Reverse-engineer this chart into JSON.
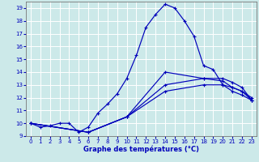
{
  "xlabel": "Graphe des températures (°C)",
  "bg_color": "#cce9e9",
  "grid_color": "#ffffff",
  "line_color": "#0000bb",
  "xlim": [
    -0.5,
    23.5
  ],
  "ylim": [
    9,
    19.5
  ],
  "xticks": [
    0,
    1,
    2,
    3,
    4,
    5,
    6,
    7,
    8,
    9,
    10,
    11,
    12,
    13,
    14,
    15,
    16,
    17,
    18,
    19,
    20,
    21,
    22,
    23
  ],
  "yticks": [
    9,
    10,
    11,
    12,
    13,
    14,
    15,
    16,
    17,
    18,
    19
  ],
  "series": [
    {
      "x": [
        0,
        1,
        2,
        3,
        4,
        5,
        6,
        7,
        8,
        9,
        10,
        11,
        12,
        13,
        14,
        15,
        16,
        17,
        18,
        19,
        20,
        21,
        22,
        23
      ],
      "y": [
        10.0,
        9.7,
        9.8,
        10.0,
        10.0,
        9.3,
        9.7,
        10.8,
        11.5,
        12.3,
        13.5,
        15.3,
        17.5,
        18.5,
        19.3,
        19.0,
        18.0,
        16.8,
        14.5,
        14.2,
        13.0,
        12.8,
        12.5,
        12.0
      ]
    },
    {
      "x": [
        0,
        6,
        10,
        14,
        18,
        20,
        21,
        22,
        23
      ],
      "y": [
        10.0,
        9.3,
        10.5,
        14.0,
        13.5,
        13.5,
        13.2,
        12.8,
        11.8
      ]
    },
    {
      "x": [
        0,
        6,
        10,
        14,
        18,
        20,
        21,
        22,
        23
      ],
      "y": [
        10.0,
        9.3,
        10.5,
        13.0,
        13.5,
        13.3,
        12.8,
        12.5,
        11.8
      ]
    },
    {
      "x": [
        0,
        6,
        10,
        14,
        18,
        20,
        21,
        22,
        23
      ],
      "y": [
        10.0,
        9.3,
        10.5,
        12.5,
        13.0,
        13.0,
        12.5,
        12.2,
        11.8
      ]
    }
  ]
}
